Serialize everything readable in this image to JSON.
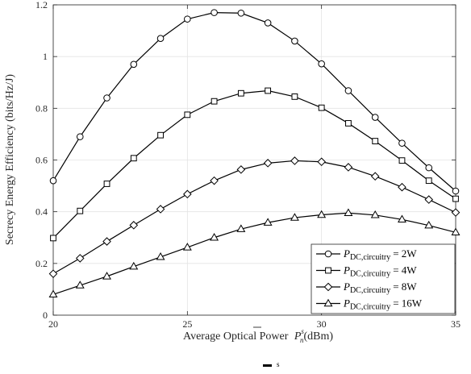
{
  "chart_data": {
    "type": "line",
    "xlabel_prefix": "Average Optical Power",
    "xlabel_var": "P",
    "xlabel_sub": "n",
    "xlabel_sup": "s",
    "xlabel_unit": "(dBm)",
    "ylabel": "Secrecy Energy Efficiency (bits/Hz/J)",
    "xlim": [
      20,
      35
    ],
    "ylim": [
      0,
      1.2
    ],
    "grid": true,
    "legend_position": "bottom-right",
    "x": [
      20,
      21,
      22,
      23,
      24,
      25,
      26,
      27,
      28,
      29,
      30,
      31,
      32,
      33,
      34,
      35
    ],
    "xticks": [
      "20",
      "25",
      "30",
      "35"
    ],
    "yticks": [
      "0",
      "0.2",
      "0.4",
      "0.6",
      "0.8",
      "1",
      "1.2"
    ],
    "series": [
      {
        "name": "P_DC,circuitry = 2W",
        "legend_var": "P",
        "legend_sub": "DC,circuitry",
        "legend_value": "= 2W",
        "marker": "circle",
        "values": [
          0.52,
          0.69,
          0.84,
          0.97,
          1.07,
          1.145,
          1.17,
          1.168,
          1.13,
          1.06,
          0.972,
          0.868,
          0.765,
          0.665,
          0.57,
          0.48
        ]
      },
      {
        "name": "P_DC,circuitry = 4W",
        "legend_var": "P",
        "legend_sub": "DC,circuitry",
        "legend_value": "= 4W",
        "marker": "square",
        "values": [
          0.298,
          0.403,
          0.508,
          0.607,
          0.696,
          0.775,
          0.827,
          0.858,
          0.868,
          0.845,
          0.802,
          0.742,
          0.673,
          0.598,
          0.52,
          0.45
        ]
      },
      {
        "name": "P_DC,circuitry = 8W",
        "legend_var": "P",
        "legend_sub": "DC,circuitry",
        "legend_value": "= 8W",
        "marker": "diamond",
        "values": [
          0.16,
          0.22,
          0.285,
          0.348,
          0.41,
          0.468,
          0.52,
          0.563,
          0.588,
          0.597,
          0.593,
          0.572,
          0.537,
          0.495,
          0.447,
          0.397
        ]
      },
      {
        "name": "P_DC,circuitry = 16W",
        "legend_var": "P",
        "legend_sub": "DC,circuitry",
        "legend_value": "= 16W",
        "marker": "triangle",
        "values": [
          0.08,
          0.115,
          0.15,
          0.188,
          0.225,
          0.262,
          0.3,
          0.333,
          0.358,
          0.377,
          0.388,
          0.395,
          0.387,
          0.37,
          0.347,
          0.32
        ]
      }
    ]
  },
  "caption": {
    "symbol": "s"
  }
}
